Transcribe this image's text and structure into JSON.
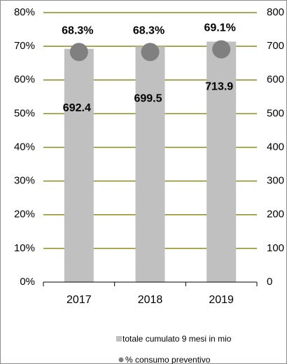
{
  "chart_data": {
    "type": "bar",
    "categories": [
      "2017",
      "2018",
      "2019"
    ],
    "series": [
      {
        "name": "totale cumulato 9 mesi in mio",
        "type": "bar",
        "axis": "y2",
        "color": "#c0c0c0",
        "values": [
          692.4,
          699.5,
          713.9
        ]
      },
      {
        "name": "% consumo preventivo",
        "type": "scatter",
        "axis": "y",
        "color": "#808080",
        "values": [
          68.3,
          68.3,
          69.1
        ],
        "value_labels": [
          "68.3%",
          "68.3%",
          "69.1%"
        ]
      }
    ],
    "ylim": [
      0,
      80
    ],
    "yticks": [
      {
        "value": 0,
        "label": "0%"
      },
      {
        "value": 10,
        "label": "10%"
      },
      {
        "value": 20,
        "label": "20%"
      },
      {
        "value": 30,
        "label": "30%"
      },
      {
        "value": 40,
        "label": "40%"
      },
      {
        "value": 50,
        "label": "50%"
      },
      {
        "value": 60,
        "label": "60%"
      },
      {
        "value": 70,
        "label": "70%"
      },
      {
        "value": 80,
        "label": "80%"
      }
    ],
    "y2lim": [
      0,
      800
    ],
    "y2ticks": [
      0,
      100,
      200,
      300,
      400,
      500,
      600,
      700,
      800
    ],
    "grid": true,
    "grid_color": "#8c8c1e",
    "legend": "bottom"
  }
}
